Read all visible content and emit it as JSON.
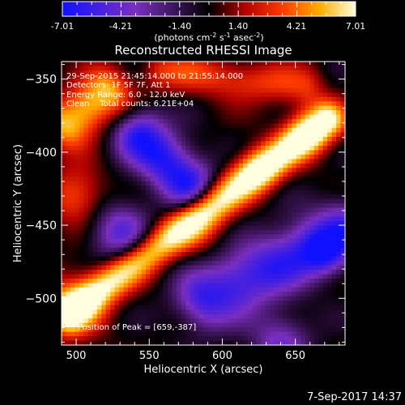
{
  "colorbar": {
    "ticks": [
      "-7.01",
      "-4.21",
      "-1.40",
      "1.40",
      "4.21",
      "7.01"
    ],
    "units_main": "(photons cm",
    "units_sup1": "-2",
    "units_mid1": " s",
    "units_sup2": "-1",
    "units_mid2": " asec",
    "units_sup3": "-2",
    "units_end": ")"
  },
  "title": "Reconstructed RHESSI Image",
  "annotations": {
    "time_range": "29-Sep-2015 21:45:14.000 to 21:55:14.000",
    "detectors": "Detectors: 1F 5F 7F, Att 1",
    "energy": "Energy Range: 6.0 - 12.0 keV",
    "clean": "Clean    Total counts: 6.21E+04",
    "peak": "Position of Peak = [659,-387]"
  },
  "timestamp": "7-Sep-2017 14:37",
  "chart_data": {
    "type": "heatmap",
    "title": "Reconstructed RHESSI Image",
    "xlabel": "Heliocentric X (arcsec)",
    "ylabel": "Heliocentric Y (arcsec)",
    "xlim": [
      490,
      684
    ],
    "ylim": [
      -532,
      -338
    ],
    "x_ticks": [
      500,
      550,
      600,
      650
    ],
    "y_ticks": [
      -350,
      -400,
      -450,
      -500
    ],
    "color_range": [
      -7.01,
      7.01
    ],
    "colormap": [
      "#0000ff",
      "#800080",
      "#000000",
      "#ff0000",
      "#ffff00",
      "#ffffff"
    ],
    "peak": [
      659,
      -387
    ]
  }
}
